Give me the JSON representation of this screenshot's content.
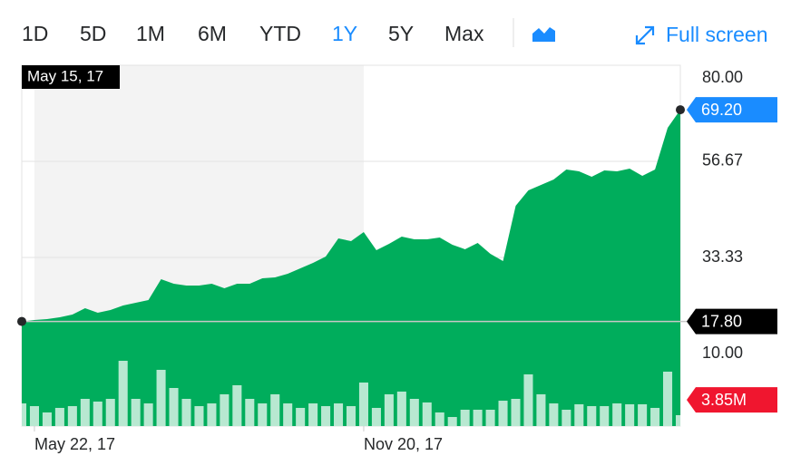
{
  "toolbar": {
    "ranges": [
      "1D",
      "5D",
      "1M",
      "6M",
      "YTD",
      "1Y",
      "5Y",
      "Max"
    ],
    "active_index": 5,
    "full_screen": "Full screen"
  },
  "chart_data": {
    "type": "area",
    "color": "#00ad5c",
    "values": [
      17.8,
      18.15,
      18.37,
      18.81,
      19.47,
      21.01,
      19.91,
      20.57,
      21.67,
      22.33,
      22.99,
      28.05,
      26.95,
      26.51,
      26.51,
      26.95,
      25.85,
      26.95,
      26.95,
      28.27,
      28.49,
      29.37,
      30.69,
      32.01,
      33.55,
      37.96,
      37.3,
      39.5,
      35.1,
      36.64,
      38.4,
      37.74,
      37.74,
      38.18,
      36.42,
      35.32,
      36.86,
      34.22,
      32.45,
      45.88,
      49.62,
      50.94,
      52.26,
      54.69,
      54.25,
      52.93,
      54.47,
      54.25,
      54.91,
      53.15,
      54.69,
      64.81,
      69.2
    ],
    "volume": [
      3.33,
      2.93,
      2.0,
      2.67,
      2.93,
      4.0,
      3.6,
      4.0,
      9.6,
      4.0,
      3.33,
      8.27,
      5.6,
      4.0,
      2.93,
      3.33,
      4.67,
      6.0,
      4.0,
      3.33,
      4.67,
      3.33,
      2.67,
      3.33,
      2.93,
      3.33,
      2.93,
      6.4,
      2.67,
      4.67,
      5.07,
      4.0,
      3.47,
      2.0,
      1.33,
      2.4,
      2.4,
      2.4,
      3.73,
      4.0,
      7.6,
      4.67,
      3.33,
      2.4,
      3.2,
      2.93,
      2.93,
      3.33,
      3.2,
      3.2,
      2.67,
      8.0,
      1.6
    ],
    "volume_lim": [
      0,
      12
    ],
    "xlim": [
      0,
      52
    ],
    "xticks": [
      {
        "value": 1,
        "label": "May 22, 17"
      },
      {
        "value": 27,
        "label": "Nov 20, 17"
      }
    ],
    "ylim": [
      10,
      80
    ],
    "yticks": [
      {
        "value": 80,
        "label": "80.00"
      },
      {
        "value": 56.67,
        "label": "56.67"
      },
      {
        "value": 33.33,
        "label": "33.33"
      },
      {
        "value": 10,
        "label": "10.00"
      }
    ],
    "grid": true,
    "tooltip_date": "May 15, 17",
    "last_marker": {
      "value": 69.2,
      "label": "69.20",
      "color": "#1a8cff"
    },
    "start_marker": {
      "value": 17.8,
      "label": "17.80",
      "color": "#000000"
    },
    "volume_marker": {
      "value": 3.85,
      "label": "3.85M",
      "color": "#f0162f"
    }
  }
}
